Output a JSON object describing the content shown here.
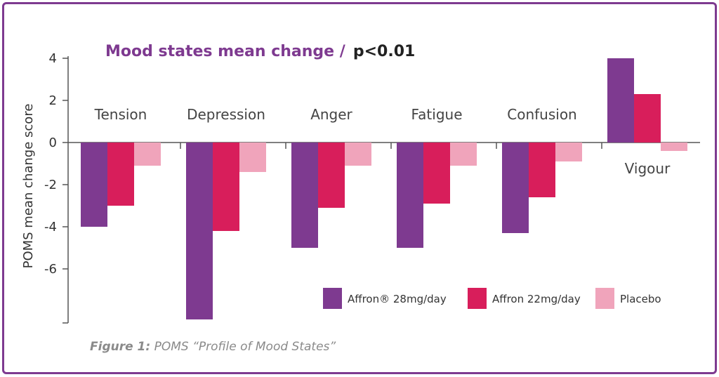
{
  "caption": {
    "figure_label": "Figure 1:",
    "text": "POMS “Profile of Mood States”"
  },
  "chart_data": {
    "type": "bar",
    "title_main": "Mood states mean change /",
    "title_p": "p<0.01",
    "ylabel": "POMS mean change score",
    "xlabel": "",
    "ylim": [
      -8.5,
      4
    ],
    "yticks": [
      4,
      2,
      0,
      -2,
      -4,
      -6
    ],
    "grid": false,
    "legend_position": "bottom-right",
    "categories": [
      "Tension",
      "Depression",
      "Anger",
      "Fatigue",
      "Confusion",
      "Vigour"
    ],
    "series": [
      {
        "name": "Affron® 28mg/day",
        "color": "#7e3a90",
        "values": [
          -4.0,
          -8.4,
          -5.0,
          -5.0,
          -4.3,
          4.0
        ]
      },
      {
        "name": "Affron 22mg/day",
        "color": "#d81e5b",
        "values": [
          -3.0,
          -4.2,
          -3.1,
          -2.9,
          -2.6,
          2.3
        ]
      },
      {
        "name": "Placebo",
        "color": "#f0a4bb",
        "values": [
          -1.1,
          -1.4,
          -1.1,
          -1.1,
          -0.9,
          -0.4
        ]
      }
    ]
  }
}
